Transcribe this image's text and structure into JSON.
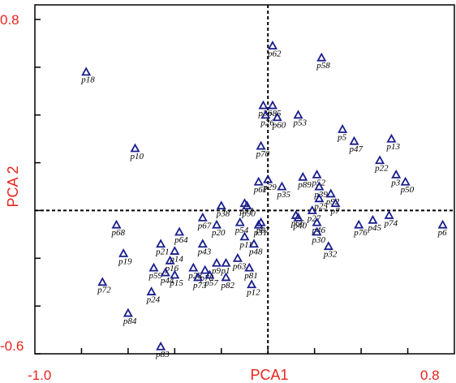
{
  "chart_data": {
    "type": "scatter",
    "xlabel": "PCA1",
    "ylabel": "PCA 2",
    "xlim": [
      -1.0,
      0.8
    ],
    "ylim": [
      -0.6,
      0.8
    ],
    "x_tick_labels": [
      "-1.0",
      "PCA1",
      "0.8"
    ],
    "y_tick_labels": [
      "0.8",
      "-0.6"
    ],
    "reference_lines": {
      "x": 0,
      "y": 0
    },
    "marker": "open-triangle",
    "marker_color": "#1a1f8c",
    "points": [
      {
        "label": "p62",
        "x": 0.02,
        "y": 0.69
      },
      {
        "label": "p58",
        "x": 0.23,
        "y": 0.64
      },
      {
        "label": "p18",
        "x": -0.78,
        "y": 0.58
      },
      {
        "label": "p36",
        "x": -0.02,
        "y": 0.44
      },
      {
        "label": "p85",
        "x": 0.02,
        "y": 0.44
      },
      {
        "label": "p26",
        "x": -0.01,
        "y": 0.4
      },
      {
        "label": "p60",
        "x": 0.04,
        "y": 0.39
      },
      {
        "label": "p53",
        "x": 0.13,
        "y": 0.4
      },
      {
        "label": "p5",
        "x": 0.32,
        "y": 0.34
      },
      {
        "label": "p47",
        "x": 0.37,
        "y": 0.29
      },
      {
        "label": "p13",
        "x": 0.53,
        "y": 0.3
      },
      {
        "label": "p70",
        "x": -0.03,
        "y": 0.27
      },
      {
        "label": "p10",
        "x": -0.57,
        "y": 0.26
      },
      {
        "label": "p22",
        "x": 0.48,
        "y": 0.21
      },
      {
        "label": "p3",
        "x": 0.55,
        "y": 0.15
      },
      {
        "label": "p50",
        "x": 0.59,
        "y": 0.12
      },
      {
        "label": "p89",
        "x": 0.15,
        "y": 0.14
      },
      {
        "label": "p52",
        "x": 0.21,
        "y": 0.15
      },
      {
        "label": "p39",
        "x": 0.22,
        "y": 0.1
      },
      {
        "label": "p61",
        "x": -0.04,
        "y": 0.12
      },
      {
        "label": "p29",
        "x": 0.0,
        "y": 0.13
      },
      {
        "label": "p35",
        "x": 0.06,
        "y": 0.1
      },
      {
        "label": "p92",
        "x": 0.27,
        "y": 0.07
      },
      {
        "label": "p25",
        "x": 0.22,
        "y": 0.05
      },
      {
        "label": "p7",
        "x": 0.29,
        "y": 0.03
      },
      {
        "label": "p38",
        "x": -0.2,
        "y": 0.02
      },
      {
        "label": "p77",
        "x": -0.1,
        "y": 0.03
      },
      {
        "label": "p90",
        "x": -0.09,
        "y": 0.02
      },
      {
        "label": "p66",
        "x": 0.12,
        "y": -0.02
      },
      {
        "label": "p27",
        "x": 0.19,
        "y": 0.0
      },
      {
        "label": "p40",
        "x": 0.13,
        "y": -0.03
      },
      {
        "label": "p6",
        "x": 0.75,
        "y": -0.06
      },
      {
        "label": "p74",
        "x": 0.52,
        "y": -0.02
      },
      {
        "label": "p45",
        "x": 0.45,
        "y": -0.04
      },
      {
        "label": "p76",
        "x": 0.39,
        "y": -0.06
      },
      {
        "label": "p46",
        "x": 0.21,
        "y": -0.05
      },
      {
        "label": "p67",
        "x": -0.28,
        "y": -0.03
      },
      {
        "label": "p20",
        "x": -0.22,
        "y": -0.06
      },
      {
        "label": "p54",
        "x": -0.12,
        "y": -0.05
      },
      {
        "label": "p31",
        "x": -0.04,
        "y": -0.06
      },
      {
        "label": "p87",
        "x": -0.03,
        "y": -0.05
      },
      {
        "label": "p68",
        "x": -0.65,
        "y": -0.06
      },
      {
        "label": "p64",
        "x": -0.38,
        "y": -0.09
      },
      {
        "label": "p30",
        "x": 0.21,
        "y": -0.09
      },
      {
        "label": "p11",
        "x": -0.1,
        "y": -0.11
      },
      {
        "label": "p43",
        "x": -0.28,
        "y": -0.14
      },
      {
        "label": "p48",
        "x": -0.06,
        "y": -0.14
      },
      {
        "label": "p21",
        "x": -0.46,
        "y": -0.14
      },
      {
        "label": "p19",
        "x": -0.62,
        "y": -0.18
      },
      {
        "label": "p14",
        "x": -0.4,
        "y": -0.17
      },
      {
        "label": "p32",
        "x": 0.26,
        "y": -0.15
      },
      {
        "label": "p16",
        "x": -0.42,
        "y": -0.21
      },
      {
        "label": "p9",
        "x": -0.22,
        "y": -0.22
      },
      {
        "label": "p1",
        "x": -0.18,
        "y": -0.22
      },
      {
        "label": "p63",
        "x": -0.13,
        "y": -0.2
      },
      {
        "label": "p28",
        "x": -0.32,
        "y": -0.24
      },
      {
        "label": "p59",
        "x": -0.49,
        "y": -0.24
      },
      {
        "label": "p78",
        "x": -0.27,
        "y": -0.25
      },
      {
        "label": "p81",
        "x": -0.08,
        "y": -0.24
      },
      {
        "label": "p44",
        "x": -0.44,
        "y": -0.26
      },
      {
        "label": "p15",
        "x": -0.4,
        "y": -0.27
      },
      {
        "label": "p73",
        "x": -0.3,
        "y": -0.28
      },
      {
        "label": "p57",
        "x": -0.25,
        "y": -0.27
      },
      {
        "label": "p82",
        "x": -0.18,
        "y": -0.28
      },
      {
        "label": "p72",
        "x": -0.71,
        "y": -0.3
      },
      {
        "label": "p12",
        "x": -0.07,
        "y": -0.31
      },
      {
        "label": "p24",
        "x": -0.5,
        "y": -0.34
      },
      {
        "label": "p84",
        "x": -0.6,
        "y": -0.43
      },
      {
        "label": "p83",
        "x": -0.46,
        "y": -0.57
      }
    ]
  }
}
